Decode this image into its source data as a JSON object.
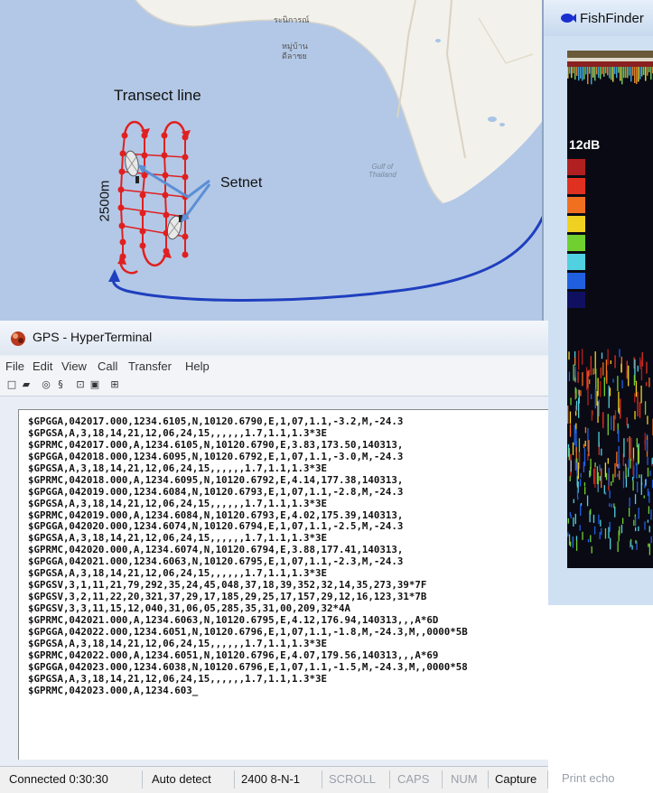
{
  "map": {
    "annotations": {
      "transect_label": "Transect line",
      "setnet_label": "Setnet",
      "distance_label": "2500m"
    },
    "gulf_label_line1": "Gulf of",
    "gulf_label_line2": "Thailand",
    "thai_labels": [
      "ระนิการณ์",
      "หมู่บ้าน",
      "ดีลาชย"
    ],
    "colors": {
      "sea": "#b3c8e6",
      "land": "#f3f1ec",
      "transect": "#e02020",
      "arrow": "#1f3fbf",
      "setnet_pointer": "#5b8fd6"
    }
  },
  "fishfinder": {
    "title": "FishFinder",
    "gain_label": "12dB",
    "color_scale": [
      "#b02020",
      "#e03020",
      "#f07020",
      "#f0d020",
      "#70d030",
      "#50d0e0",
      "#2060e0",
      "#101060"
    ]
  },
  "hyperterminal": {
    "title": "GPS - HyperTerminal",
    "menu": [
      "File",
      "Edit",
      "View",
      "Call",
      "Transfer",
      "Help"
    ],
    "terminal_lines": [
      "$GPGGA,042017.000,1234.6105,N,10120.6790,E,1,07,1.1,-3.2,M,-24.3",
      "$GPGSA,A,3,18,14,21,12,06,24,15,,,,,,1.7,1.1,1.3*3E",
      "$GPRMC,042017.000,A,1234.6105,N,10120.6790,E,3.83,173.50,140313,",
      "$GPGGA,042018.000,1234.6095,N,10120.6792,E,1,07,1.1,-3.0,M,-24.3",
      "$GPGSA,A,3,18,14,21,12,06,24,15,,,,,,1.7,1.1,1.3*3E",
      "$GPRMC,042018.000,A,1234.6095,N,10120.6792,E,4.14,177.38,140313,",
      "$GPGGA,042019.000,1234.6084,N,10120.6793,E,1,07,1.1,-2.8,M,-24.3",
      "$GPGSA,A,3,18,14,21,12,06,24,15,,,,,,1.7,1.1,1.3*3E",
      "$GPRMC,042019.000,A,1234.6084,N,10120.6793,E,4.02,175.39,140313,",
      "$GPGGA,042020.000,1234.6074,N,10120.6794,E,1,07,1.1,-2.5,M,-24.3",
      "$GPGSA,A,3,18,14,21,12,06,24,15,,,,,,1.7,1.1,1.3*3E",
      "$GPRMC,042020.000,A,1234.6074,N,10120.6794,E,3.88,177.41,140313,",
      "$GPGGA,042021.000,1234.6063,N,10120.6795,E,1,07,1.1,-2.3,M,-24.3",
      "$GPGSA,A,3,18,14,21,12,06,24,15,,,,,,1.7,1.1,1.3*3E",
      "$GPGSV,3,1,11,21,79,292,35,24,45,048,37,18,39,352,32,14,35,273,39*7F",
      "$GPGSV,3,2,11,22,20,321,37,29,17,185,29,25,17,157,29,12,16,123,31*7B",
      "$GPGSV,3,3,11,15,12,040,31,06,05,285,35,31,00,209,32*4A",
      "$GPRMC,042021.000,A,1234.6063,N,10120.6795,E,4.12,176.94,140313,,,A*6D",
      "$GPGGA,042022.000,1234.6051,N,10120.6796,E,1,07,1.1,-1.8,M,-24.3,M,,0000*5B",
      "$GPGSA,A,3,18,14,21,12,06,24,15,,,,,,1.7,1.1,1.3*3E",
      "$GPRMC,042022.000,A,1234.6051,N,10120.6796,E,4.07,179.56,140313,,,A*69",
      "$GPGGA,042023.000,1234.6038,N,10120.6796,E,1,07,1.1,-1.5,M,-24.3,M,,0000*58",
      "$GPGSA,A,3,18,14,21,12,06,24,15,,,,,,1.7,1.1,1.3*3E",
      "$GPRMC,042023.000,A,1234.603_"
    ],
    "status": {
      "connected": "Connected 0:30:30",
      "detect": "Auto detect",
      "settings": "2400 8-N-1",
      "scroll": "SCROLL",
      "caps": "CAPS",
      "num": "NUM",
      "capture": "Capture",
      "print_echo": "Print echo"
    }
  }
}
